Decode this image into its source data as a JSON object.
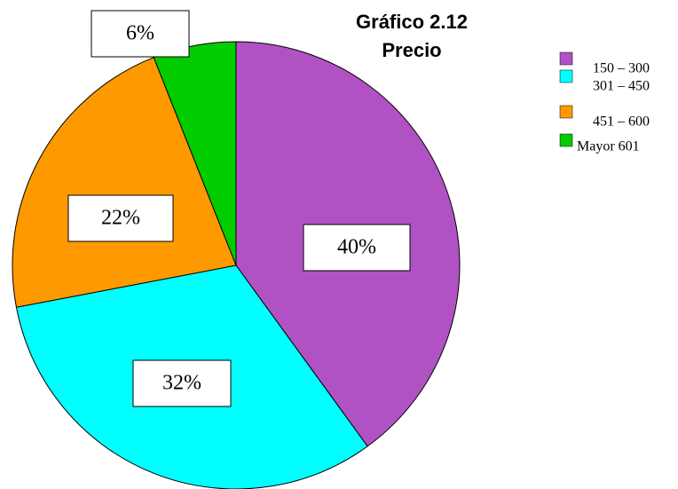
{
  "chart_data": {
    "type": "pie",
    "title": "Gráfico 2.12",
    "subtitle": "Precio",
    "categories": [
      "150 – 300",
      "301 – 450",
      "451 – 600",
      "Mayor 601"
    ],
    "values": [
      40,
      32,
      22,
      6
    ],
    "value_labels": [
      "40%",
      "32%",
      "22%",
      "6%"
    ],
    "colors": [
      "#b152c4",
      "#00ffff",
      "#ff9900",
      "#00cc00"
    ],
    "legend": "right"
  }
}
